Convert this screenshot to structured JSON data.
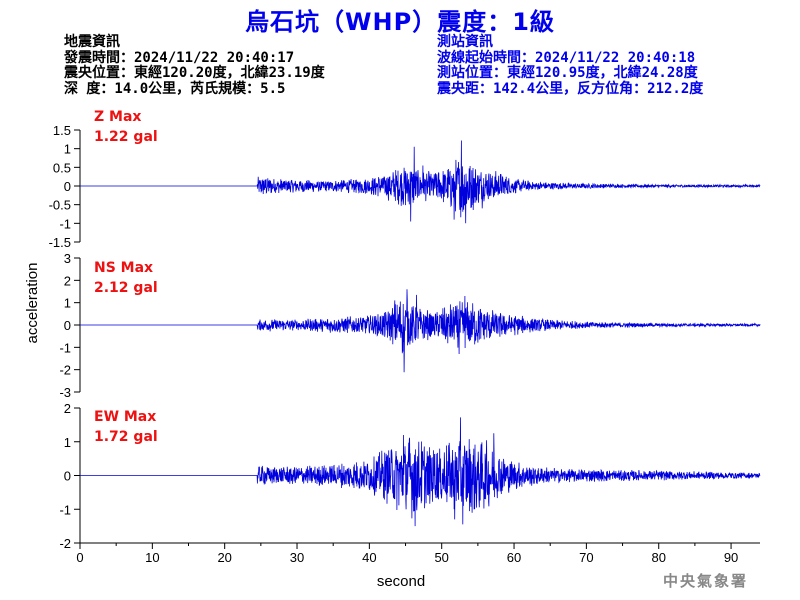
{
  "title": "烏石坑（WHP）震度：1級",
  "earthquake_info": {
    "heading": "地震資訊",
    "origin_time": "發震時間：2024/11/22 20:40:17",
    "epicenter": "震央位置：東經120.20度，北緯23.19度",
    "depth_magnitude": "深  度：14.0公里，芮氏規模：5.5"
  },
  "station_info": {
    "heading": "測站資訊",
    "wave_start": "波線起始時間：2024/11/22 20:40:18",
    "station_location": "測站位置：東經120.95度，北緯24.28度",
    "distance_azimuth": "震央距：142.4公里，反方位角：212.2度"
  },
  "credit": "中央氣象署",
  "colors": {
    "title": "#0000ee",
    "waveform": "#0000dd",
    "peak_label": "#ee1111",
    "station_info": "#0000ee",
    "earthquake_info": "#000000",
    "credit": "#888888"
  },
  "chart_data": {
    "type": "line",
    "xlabel": "second",
    "ylabel": "acceleration",
    "xlim": [
      0,
      94
    ],
    "x_ticks": [
      0,
      10,
      20,
      30,
      40,
      50,
      60,
      70,
      80,
      90
    ],
    "grid": false,
    "signal_onset": 24.5,
    "series": [
      {
        "name": "Z",
        "peak_label": "Z Max",
        "peak_value": "1.22 gal",
        "ylim": [
          -1.5,
          1.5
        ],
        "y_ticks": [
          1.5,
          1,
          0.5,
          0,
          -0.5,
          -1,
          -1.5
        ],
        "y_tick_labels": [
          "1.5",
          "1",
          "0.5",
          "0",
          "-0.5",
          "-1",
          "-1.5"
        ],
        "envelope": [
          [
            0,
            0
          ],
          [
            24.4,
            0
          ],
          [
            24.5,
            0.25
          ],
          [
            25.5,
            0.3
          ],
          [
            27,
            0.2
          ],
          [
            30,
            0.2
          ],
          [
            34,
            0.15
          ],
          [
            38,
            0.2
          ],
          [
            40,
            0.25
          ],
          [
            42,
            0.35
          ],
          [
            44,
            0.5
          ],
          [
            45.5,
            0.7
          ],
          [
            47,
            0.4
          ],
          [
            50,
            0.45
          ],
          [
            52,
            0.75
          ],
          [
            53,
            1.0
          ],
          [
            55,
            0.5
          ],
          [
            58,
            0.4
          ],
          [
            60,
            0.2
          ],
          [
            63,
            0.12
          ],
          [
            68,
            0.08
          ],
          [
            75,
            0.05
          ],
          [
            85,
            0.035
          ],
          [
            94,
            0.03
          ]
        ],
        "peaks": [
          [
            45.7,
            -0.95
          ],
          [
            46.2,
            1.05
          ],
          [
            51.7,
            -0.9
          ],
          [
            52.7,
            1.22
          ],
          [
            53.3,
            -1.0
          ],
          [
            47.4,
            0.55
          ],
          [
            55.6,
            -0.6
          ]
        ]
      },
      {
        "name": "NS",
        "peak_label": "NS Max",
        "peak_value": "2.12 gal",
        "ylim": [
          -3,
          3
        ],
        "y_ticks": [
          3,
          2,
          1,
          0,
          -1,
          -2,
          -3
        ],
        "y_tick_labels": [
          "3",
          "2",
          "1",
          "0",
          "-1",
          "-2",
          "-3"
        ],
        "envelope": [
          [
            0,
            0
          ],
          [
            24.4,
            0
          ],
          [
            24.5,
            0.25
          ],
          [
            26,
            0.3
          ],
          [
            30,
            0.25
          ],
          [
            34,
            0.35
          ],
          [
            38,
            0.4
          ],
          [
            41,
            0.5
          ],
          [
            43,
            0.8
          ],
          [
            44.5,
            1.4
          ],
          [
            45.5,
            1.1
          ],
          [
            47,
            0.8
          ],
          [
            49,
            0.6
          ],
          [
            51,
            1.0
          ],
          [
            53,
            1.1
          ],
          [
            55,
            1.0
          ],
          [
            57,
            0.7
          ],
          [
            60,
            0.5
          ],
          [
            62,
            0.35
          ],
          [
            65,
            0.25
          ],
          [
            70,
            0.15
          ],
          [
            80,
            0.08
          ],
          [
            94,
            0.06
          ]
        ],
        "peaks": [
          [
            44.8,
            -2.12
          ],
          [
            45.2,
            1.6
          ],
          [
            43.5,
            1.1
          ],
          [
            52.4,
            -1.3
          ],
          [
            53.2,
            1.3
          ],
          [
            46.5,
            1.35
          ]
        ]
      },
      {
        "name": "EW",
        "peak_label": "EW Max",
        "peak_value": "1.72 gal",
        "ylim": [
          -2,
          2
        ],
        "y_ticks": [
          2,
          1,
          0,
          -1,
          -2
        ],
        "y_tick_labels": [
          "2",
          "1",
          "0",
          "-1",
          "-2"
        ],
        "envelope": [
          [
            0,
            0
          ],
          [
            24.4,
            0
          ],
          [
            24.5,
            0.3
          ],
          [
            26,
            0.3
          ],
          [
            30,
            0.3
          ],
          [
            35,
            0.35
          ],
          [
            40,
            0.5
          ],
          [
            42,
            0.8
          ],
          [
            44,
            1.1
          ],
          [
            46,
            1.3
          ],
          [
            48,
            1.0
          ],
          [
            50,
            0.9
          ],
          [
            52,
            1.2
          ],
          [
            54,
            1.2
          ],
          [
            56,
            1.1
          ],
          [
            58,
            0.7
          ],
          [
            60,
            0.45
          ],
          [
            63,
            0.3
          ],
          [
            66,
            0.22
          ],
          [
            70,
            0.2
          ],
          [
            80,
            0.15
          ],
          [
            94,
            0.08
          ]
        ],
        "peaks": [
          [
            46.3,
            -1.5
          ],
          [
            52.6,
            1.72
          ],
          [
            52.9,
            -1.45
          ],
          [
            44.7,
            1.2
          ],
          [
            57.2,
            1.25
          ],
          [
            51.8,
            -1.3
          ]
        ]
      }
    ]
  }
}
